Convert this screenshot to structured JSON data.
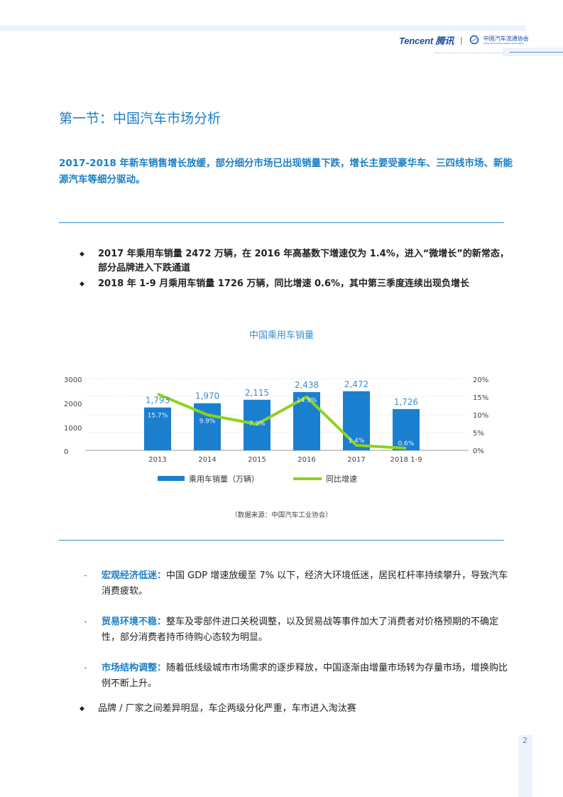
{
  "header": {
    "brand_en": "Tencent",
    "brand_cn": "腾讯",
    "separator": "|",
    "partner": "中国汽车流通协会",
    "partner_sub": "China Automobile Dealers Association"
  },
  "section": {
    "title": "第一节：中国汽车市场分析",
    "lead": "2017-2018 年新车销售增长放缓，部分细分市场已出现销量下跌，增长主要受豪华车、三四线市场、新能源汽车等细分驱动。"
  },
  "bullets": [
    "2017 年乘用车销量 2472 万辆，在 2016 年高基数下增速仅为 1.4%，进入“微增长”的新常态，部分品牌进入下跌通道",
    "2018 年 1-9 月乘用车销量 1726 万辆，同比增速 0.6%，其中第三季度连续出现负增长"
  ],
  "chart_title": "中国乘用车销量",
  "chart_data": {
    "type": "bar",
    "title": "中国乘用车销量",
    "categories": [
      "2013",
      "2014",
      "2015",
      "2016",
      "2017",
      "2018 1-9"
    ],
    "series": [
      {
        "name": "乘用车销量（万辆）",
        "type": "bar",
        "axis": "left",
        "color": "#1b7fcf",
        "values": [
          1793,
          1970,
          2115,
          2438,
          2472,
          1726
        ],
        "labels": [
          "1,793",
          "1,970",
          "2,115",
          "2,438",
          "2,472",
          "1,726"
        ]
      },
      {
        "name": "同比增速",
        "type": "line",
        "axis": "right",
        "color": "#8fd11f",
        "values": [
          15.7,
          9.9,
          7.3,
          14.9,
          1.4,
          0.6
        ],
        "labels": [
          "15.7%",
          "9.9%",
          "7.3%",
          "14.9%",
          "1.4%",
          "0.6%"
        ]
      }
    ],
    "yaxis_left": {
      "ticks": [
        "0",
        "1000",
        "2000",
        "3000"
      ],
      "range": [
        0,
        3000
      ]
    },
    "yaxis_right": {
      "ticks": [
        "0%",
        "5%",
        "10%",
        "15%",
        "20%"
      ],
      "range": [
        0,
        20
      ]
    },
    "legend_position": "bottom",
    "grid": true
  },
  "legend": {
    "bar_label": "乘用车销量（万辆）",
    "line_label": "同比增速"
  },
  "source": "（数据来源：中国汽车工业协会）",
  "factors": [
    {
      "keyword": "宏观经济低迷：",
      "text": "中国 GDP 增速放缓至 7% 以下，经济大环境低迷，居民杠杆率持续攀升，导致汽车消费疲软。"
    },
    {
      "keyword": "贸易环境不稳：",
      "text": "整车及零部件进口关税调整，以及贸易战等事件加大了消费者对价格预期的不确定性，部分消费者持币待购心态较为明显。"
    },
    {
      "keyword": "市场结构调整：",
      "text": "随着低线级城市市场需求的逐步释放，中国逐渐由增量市场转为存量市场，增换购比例不断上升。"
    }
  ],
  "last_bullet": "品牌 / 厂家之间差异明显，车企两级分化严重，车市进入淘汰赛",
  "page_number": "2",
  "colors": {
    "accent": "#1b7fc4",
    "bar": "#1b7fcf",
    "line": "#8fd11f"
  }
}
